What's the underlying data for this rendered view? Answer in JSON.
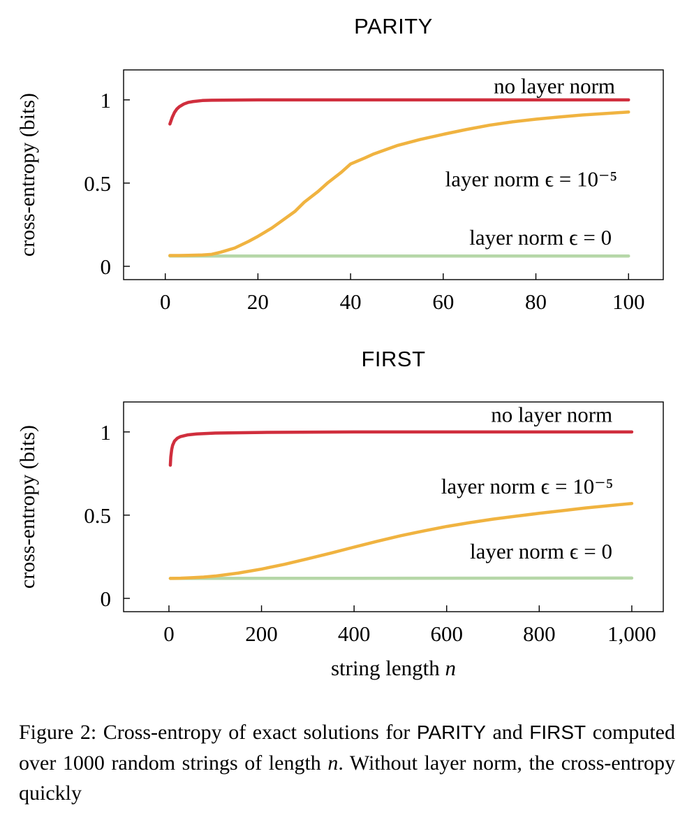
{
  "figure": {
    "xlabel": {
      "text": "string length ",
      "var": "n"
    },
    "caption_segments": [
      {
        "text": "Figure 2:  Cross-entropy of exact solutions for ",
        "style": "serif"
      },
      {
        "text": "PARITY",
        "style": "sans"
      },
      {
        "text": " and ",
        "style": "serif"
      },
      {
        "text": "FIRST",
        "style": "sans"
      },
      {
        "text": " computed over 1000 random strings of length ",
        "style": "serif"
      },
      {
        "text": "n",
        "style": "italic"
      },
      {
        "text": ". Without layer norm, the cross-entropy quickly",
        "style": "serif"
      }
    ]
  },
  "chart_data": [
    {
      "type": "line",
      "title": "PARITY",
      "ylabel": "cross-entropy (bits)",
      "xlabel": "",
      "xlim": [
        -9,
        107.5
      ],
      "ylim": [
        -0.08,
        1.18
      ],
      "grid": false,
      "legend_position": "inline-annotations",
      "xticks": [
        {
          "v": 0,
          "label": "0"
        },
        {
          "v": 20,
          "label": "20"
        },
        {
          "v": 40,
          "label": "40"
        },
        {
          "v": 60,
          "label": "60"
        },
        {
          "v": 80,
          "label": "80"
        },
        {
          "v": 100,
          "label": "100"
        }
      ],
      "yticks": [
        {
          "v": 0,
          "label": "0"
        },
        {
          "v": 0.5,
          "label": "0.5"
        },
        {
          "v": 1,
          "label": "1"
        }
      ],
      "series": [
        {
          "name": "layer norm ϵ = 0",
          "color": "#b6d7a8",
          "x": [
            1,
            100
          ],
          "y": [
            0.062,
            0.062
          ]
        },
        {
          "name": "layer norm ϵ = 10⁻⁵",
          "color": "#f0b340",
          "x": [
            1,
            3,
            5,
            8,
            10,
            12,
            15,
            18,
            20,
            23,
            25,
            28,
            30,
            33,
            35,
            38,
            40,
            43,
            45,
            50,
            55,
            60,
            65,
            70,
            75,
            80,
            85,
            90,
            95,
            100
          ],
          "y": [
            0.065,
            0.065,
            0.066,
            0.068,
            0.072,
            0.085,
            0.11,
            0.15,
            0.18,
            0.23,
            0.27,
            0.33,
            0.385,
            0.45,
            0.5,
            0.565,
            0.615,
            0.65,
            0.675,
            0.725,
            0.762,
            0.793,
            0.822,
            0.848,
            0.868,
            0.884,
            0.897,
            0.909,
            0.918,
            0.927
          ]
        },
        {
          "name": "no layer norm",
          "color": "#d02e3d",
          "x": [
            1,
            1.5,
            2,
            2.5,
            3,
            4,
            5,
            6,
            8,
            10,
            20,
            40,
            60,
            80,
            100
          ],
          "y": [
            0.855,
            0.895,
            0.925,
            0.945,
            0.958,
            0.975,
            0.985,
            0.99,
            0.996,
            0.998,
            1.0,
            1.0,
            1.0,
            1.0,
            1.0
          ]
        }
      ],
      "annotations": [
        {
          "text": "no layer norm",
          "x": 84,
          "y": 1.04
        },
        {
          "text": "layer norm ϵ = 10⁻⁵",
          "x": 79,
          "y": 0.48
        },
        {
          "text": "layer norm ϵ = 0",
          "x": 81,
          "y": 0.13
        }
      ]
    },
    {
      "type": "line",
      "title": "FIRST",
      "ylabel": "cross-entropy (bits)",
      "xlabel": "string length n",
      "xlim": [
        -98,
        1068
      ],
      "ylim": [
        -0.08,
        1.18
      ],
      "grid": false,
      "legend_position": "inline-annotations",
      "xticks": [
        {
          "v": 0,
          "label": "0"
        },
        {
          "v": 200,
          "label": "200"
        },
        {
          "v": 400,
          "label": "400"
        },
        {
          "v": 600,
          "label": "600"
        },
        {
          "v": 800,
          "label": "800"
        },
        {
          "v": 1000,
          "label": "1,000"
        }
      ],
      "yticks": [
        {
          "v": 0,
          "label": "0"
        },
        {
          "v": 0.5,
          "label": "0.5"
        },
        {
          "v": 1,
          "label": "1"
        }
      ],
      "series": [
        {
          "name": "layer norm ϵ = 0",
          "color": "#b6d7a8",
          "x": [
            3,
            1000
          ],
          "y": [
            0.12,
            0.122
          ]
        },
        {
          "name": "layer norm ϵ = 10⁻⁵",
          "color": "#f0b340",
          "x": [
            3,
            25,
            50,
            75,
            100,
            150,
            200,
            250,
            300,
            350,
            400,
            450,
            500,
            550,
            600,
            650,
            700,
            750,
            800,
            850,
            900,
            950,
            1000
          ],
          "y": [
            0.12,
            0.121,
            0.124,
            0.128,
            0.134,
            0.152,
            0.176,
            0.205,
            0.238,
            0.272,
            0.308,
            0.343,
            0.376,
            0.405,
            0.432,
            0.455,
            0.476,
            0.494,
            0.511,
            0.527,
            0.543,
            0.557,
            0.57
          ]
        },
        {
          "name": "no layer norm",
          "color": "#d02e3d",
          "x": [
            3,
            4,
            6,
            8,
            12,
            18,
            25,
            40,
            60,
            100,
            200,
            400,
            700,
            1000
          ],
          "y": [
            0.8,
            0.85,
            0.895,
            0.92,
            0.945,
            0.962,
            0.972,
            0.982,
            0.988,
            0.993,
            0.997,
            1.0,
            1.0,
            1.0
          ]
        }
      ],
      "annotations": [
        {
          "text": "no layer norm",
          "x": 827,
          "y": 1.06
        },
        {
          "text": "layer norm ϵ = 10⁻⁵",
          "x": 774,
          "y": 0.63
        },
        {
          "text": "layer norm ϵ = 0",
          "x": 804,
          "y": 0.24
        }
      ]
    }
  ]
}
